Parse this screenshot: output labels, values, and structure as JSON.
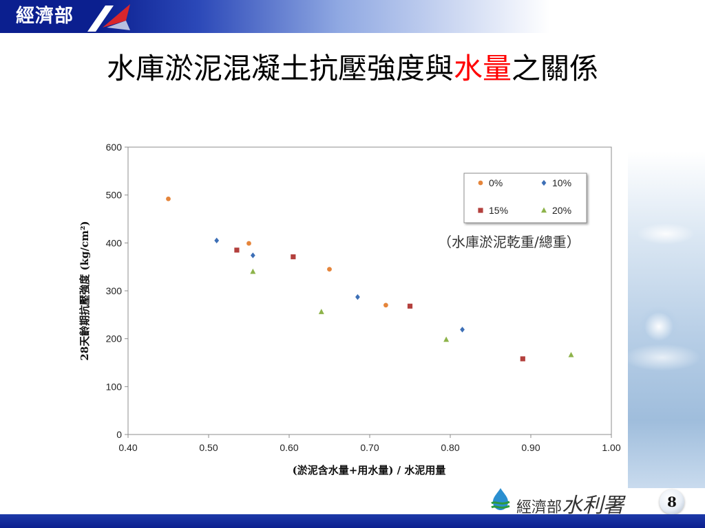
{
  "header": {
    "logo_text": "經濟部",
    "title_part1": "水庫淤泥混凝土抗壓強度與",
    "title_part2": "水量",
    "title_part3": "之關係"
  },
  "footer": {
    "org_small": "經濟部",
    "org_big": "水利署",
    "page_number": "8"
  },
  "colors": {
    "series_0": "#e5853b",
    "series_10": "#3d6fb6",
    "series_15": "#b3403d",
    "series_20": "#8db34a",
    "title_red": "#ff0000",
    "header_blue": "#0b1f8f"
  },
  "chart_data": {
    "type": "scatter",
    "xlabel": "(淤泥含水量+用水量) / 水泥用量",
    "ylabel": "28天齡期抗壓強度 (kg/cm²)",
    "xlim": [
      0.4,
      1.0
    ],
    "ylim": [
      0,
      600
    ],
    "x_ticks": [
      "0.40",
      "0.50",
      "0.60",
      "0.70",
      "0.80",
      "0.90",
      "1.00"
    ],
    "y_ticks": [
      "0",
      "100",
      "200",
      "300",
      "400",
      "500",
      "600"
    ],
    "grid": false,
    "legend_position": "top-right",
    "annotation": "（水庫淤泥乾重/總重）",
    "series": [
      {
        "name": "0%",
        "marker": "circle",
        "color": "#e5853b",
        "points": [
          [
            0.45,
            492
          ],
          [
            0.55,
            399
          ],
          [
            0.65,
            345
          ],
          [
            0.72,
            270
          ]
        ]
      },
      {
        "name": "10%",
        "marker": "diamond",
        "color": "#3d6fb6",
        "points": [
          [
            0.51,
            405
          ],
          [
            0.555,
            374
          ],
          [
            0.685,
            287
          ],
          [
            0.815,
            219
          ]
        ]
      },
      {
        "name": "15%",
        "marker": "square",
        "color": "#b3403d",
        "points": [
          [
            0.535,
            385
          ],
          [
            0.605,
            371
          ],
          [
            0.75,
            268
          ],
          [
            0.89,
            158
          ]
        ]
      },
      {
        "name": "20%",
        "marker": "triangle",
        "color": "#8db34a",
        "points": [
          [
            0.555,
            340
          ],
          [
            0.64,
            256
          ],
          [
            0.795,
            198
          ],
          [
            0.95,
            166
          ]
        ]
      }
    ]
  }
}
